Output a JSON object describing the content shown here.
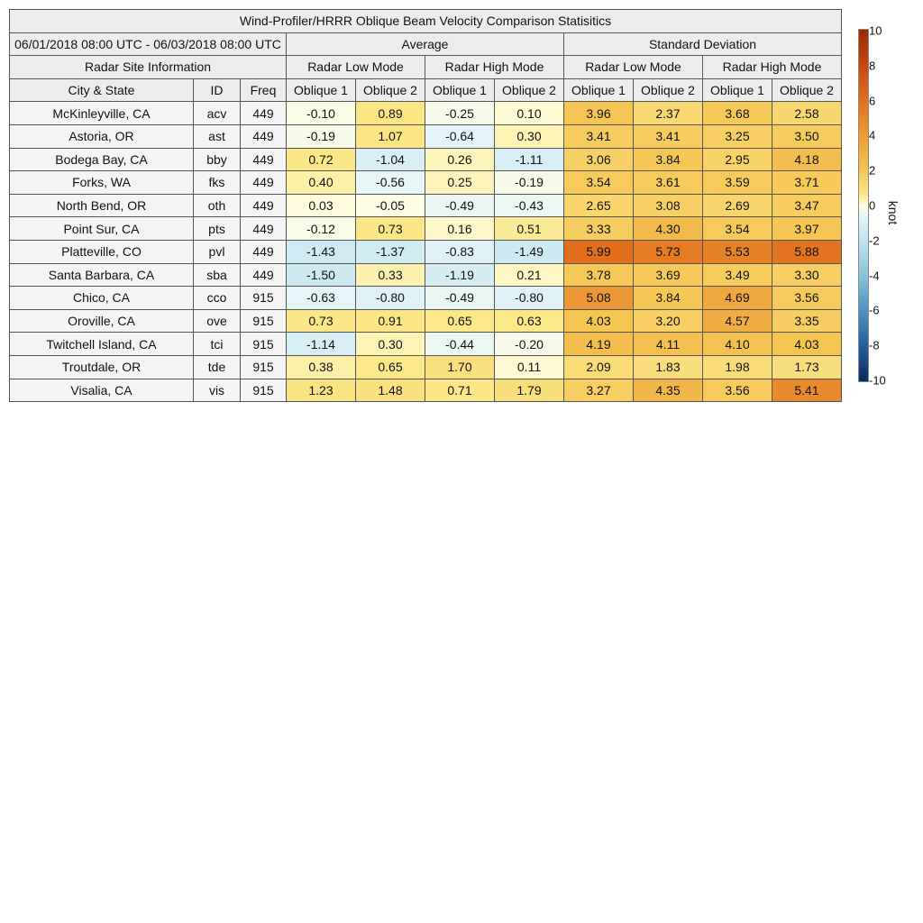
{
  "chart_data": {
    "type": "table",
    "title": "Wind-Profiler/HRRR Oblique Beam Velocity Comparison Statisitics",
    "date_range": "06/01/2018 08:00 UTC - 06/03/2018 08:00 UTC",
    "group_headers": {
      "average": "Average",
      "std": "Standard Deviation"
    },
    "site_info_header": "Radar Site Information",
    "mode_headers": [
      "Radar Low Mode",
      "Radar High Mode",
      "Radar Low Mode",
      "Radar High Mode"
    ],
    "column_headers": [
      "City & State",
      "ID",
      "Freq",
      "Oblique 1",
      "Oblique 2",
      "Oblique 1",
      "Oblique 2",
      "Oblique 1",
      "Oblique 2",
      "Oblique 1",
      "Oblique 2"
    ],
    "colorbar": {
      "unit": "knot",
      "min": -10,
      "max": 10,
      "ticks": [
        "10",
        "8",
        "6",
        "4",
        "2",
        "0",
        "-2",
        "-4",
        "-6",
        "-8",
        "-10"
      ],
      "colors": {
        "neg_strong": "#0c2a62",
        "neg_mid": "#88c3dc",
        "neutral": "#fffde2",
        "pos_mid": "#f5c653",
        "pos_strong": "#9a2a05"
      }
    },
    "rows": [
      {
        "city": "McKinleyville, CA",
        "id": "acv",
        "freq": "449",
        "avg_low_o1": "-0.10",
        "avg_low_o2": "0.89",
        "avg_high_o1": "-0.25",
        "avg_high_o2": "0.10",
        "std_low_o1": "3.96",
        "std_low_o2": "2.37",
        "std_high_o1": "3.68",
        "std_high_o2": "2.58"
      },
      {
        "city": "Astoria, OR",
        "id": "ast",
        "freq": "449",
        "avg_low_o1": "-0.19",
        "avg_low_o2": "1.07",
        "avg_high_o1": "-0.64",
        "avg_high_o2": "0.30",
        "std_low_o1": "3.41",
        "std_low_o2": "3.41",
        "std_high_o1": "3.25",
        "std_high_o2": "3.50"
      },
      {
        "city": "Bodega Bay, CA",
        "id": "bby",
        "freq": "449",
        "avg_low_o1": "0.72",
        "avg_low_o2": "-1.04",
        "avg_high_o1": "0.26",
        "avg_high_o2": "-1.11",
        "std_low_o1": "3.06",
        "std_low_o2": "3.84",
        "std_high_o1": "2.95",
        "std_high_o2": "4.18"
      },
      {
        "city": "Forks, WA",
        "id": "fks",
        "freq": "449",
        "avg_low_o1": "0.40",
        "avg_low_o2": "-0.56",
        "avg_high_o1": "0.25",
        "avg_high_o2": "-0.19",
        "std_low_o1": "3.54",
        "std_low_o2": "3.61",
        "std_high_o1": "3.59",
        "std_high_o2": "3.71"
      },
      {
        "city": "North Bend, OR",
        "id": "oth",
        "freq": "449",
        "avg_low_o1": "0.03",
        "avg_low_o2": "-0.05",
        "avg_high_o1": "-0.49",
        "avg_high_o2": "-0.43",
        "std_low_o1": "2.65",
        "std_low_o2": "3.08",
        "std_high_o1": "2.69",
        "std_high_o2": "3.47"
      },
      {
        "city": "Point Sur, CA",
        "id": "pts",
        "freq": "449",
        "avg_low_o1": "-0.12",
        "avg_low_o2": "0.73",
        "avg_high_o1": "0.16",
        "avg_high_o2": "0.51",
        "std_low_o1": "3.33",
        "std_low_o2": "4.30",
        "std_high_o1": "3.54",
        "std_high_o2": "3.97"
      },
      {
        "city": "Platteville, CO",
        "id": "pvl",
        "freq": "449",
        "avg_low_o1": "-1.43",
        "avg_low_o2": "-1.37",
        "avg_high_o1": "-0.83",
        "avg_high_o2": "-1.49",
        "std_low_o1": "5.99",
        "std_low_o2": "5.73",
        "std_high_o1": "5.53",
        "std_high_o2": "5.88"
      },
      {
        "city": "Santa Barbara, CA",
        "id": "sba",
        "freq": "449",
        "avg_low_o1": "-1.50",
        "avg_low_o2": "0.33",
        "avg_high_o1": "-1.19",
        "avg_high_o2": "0.21",
        "std_low_o1": "3.78",
        "std_low_o2": "3.69",
        "std_high_o1": "3.49",
        "std_high_o2": "3.30"
      },
      {
        "city": "Chico, CA",
        "id": "cco",
        "freq": "915",
        "avg_low_o1": "-0.63",
        "avg_low_o2": "-0.80",
        "avg_high_o1": "-0.49",
        "avg_high_o2": "-0.80",
        "std_low_o1": "5.08",
        "std_low_o2": "3.84",
        "std_high_o1": "4.69",
        "std_high_o2": "3.56"
      },
      {
        "city": "Oroville, CA",
        "id": "ove",
        "freq": "915",
        "avg_low_o1": "0.73",
        "avg_low_o2": "0.91",
        "avg_high_o1": "0.65",
        "avg_high_o2": "0.63",
        "std_low_o1": "4.03",
        "std_low_o2": "3.20",
        "std_high_o1": "4.57",
        "std_high_o2": "3.35"
      },
      {
        "city": "Twitchell Island, CA",
        "id": "tci",
        "freq": "915",
        "avg_low_o1": "-1.14",
        "avg_low_o2": "0.30",
        "avg_high_o1": "-0.44",
        "avg_high_o2": "-0.20",
        "std_low_o1": "4.19",
        "std_low_o2": "4.11",
        "std_high_o1": "4.10",
        "std_high_o2": "4.03"
      },
      {
        "city": "Troutdale, OR",
        "id": "tde",
        "freq": "915",
        "avg_low_o1": "0.38",
        "avg_low_o2": "0.65",
        "avg_high_o1": "1.70",
        "avg_high_o2": "0.11",
        "std_low_o1": "2.09",
        "std_low_o2": "1.83",
        "std_high_o1": "1.98",
        "std_high_o2": "1.73"
      },
      {
        "city": "Visalia, CA",
        "id": "vis",
        "freq": "915",
        "avg_low_o1": "1.23",
        "avg_low_o2": "1.48",
        "avg_high_o1": "0.71",
        "avg_high_o2": "1.79",
        "std_low_o1": "3.27",
        "std_low_o2": "4.35",
        "std_high_o1": "3.56",
        "std_high_o2": "5.41"
      }
    ]
  }
}
